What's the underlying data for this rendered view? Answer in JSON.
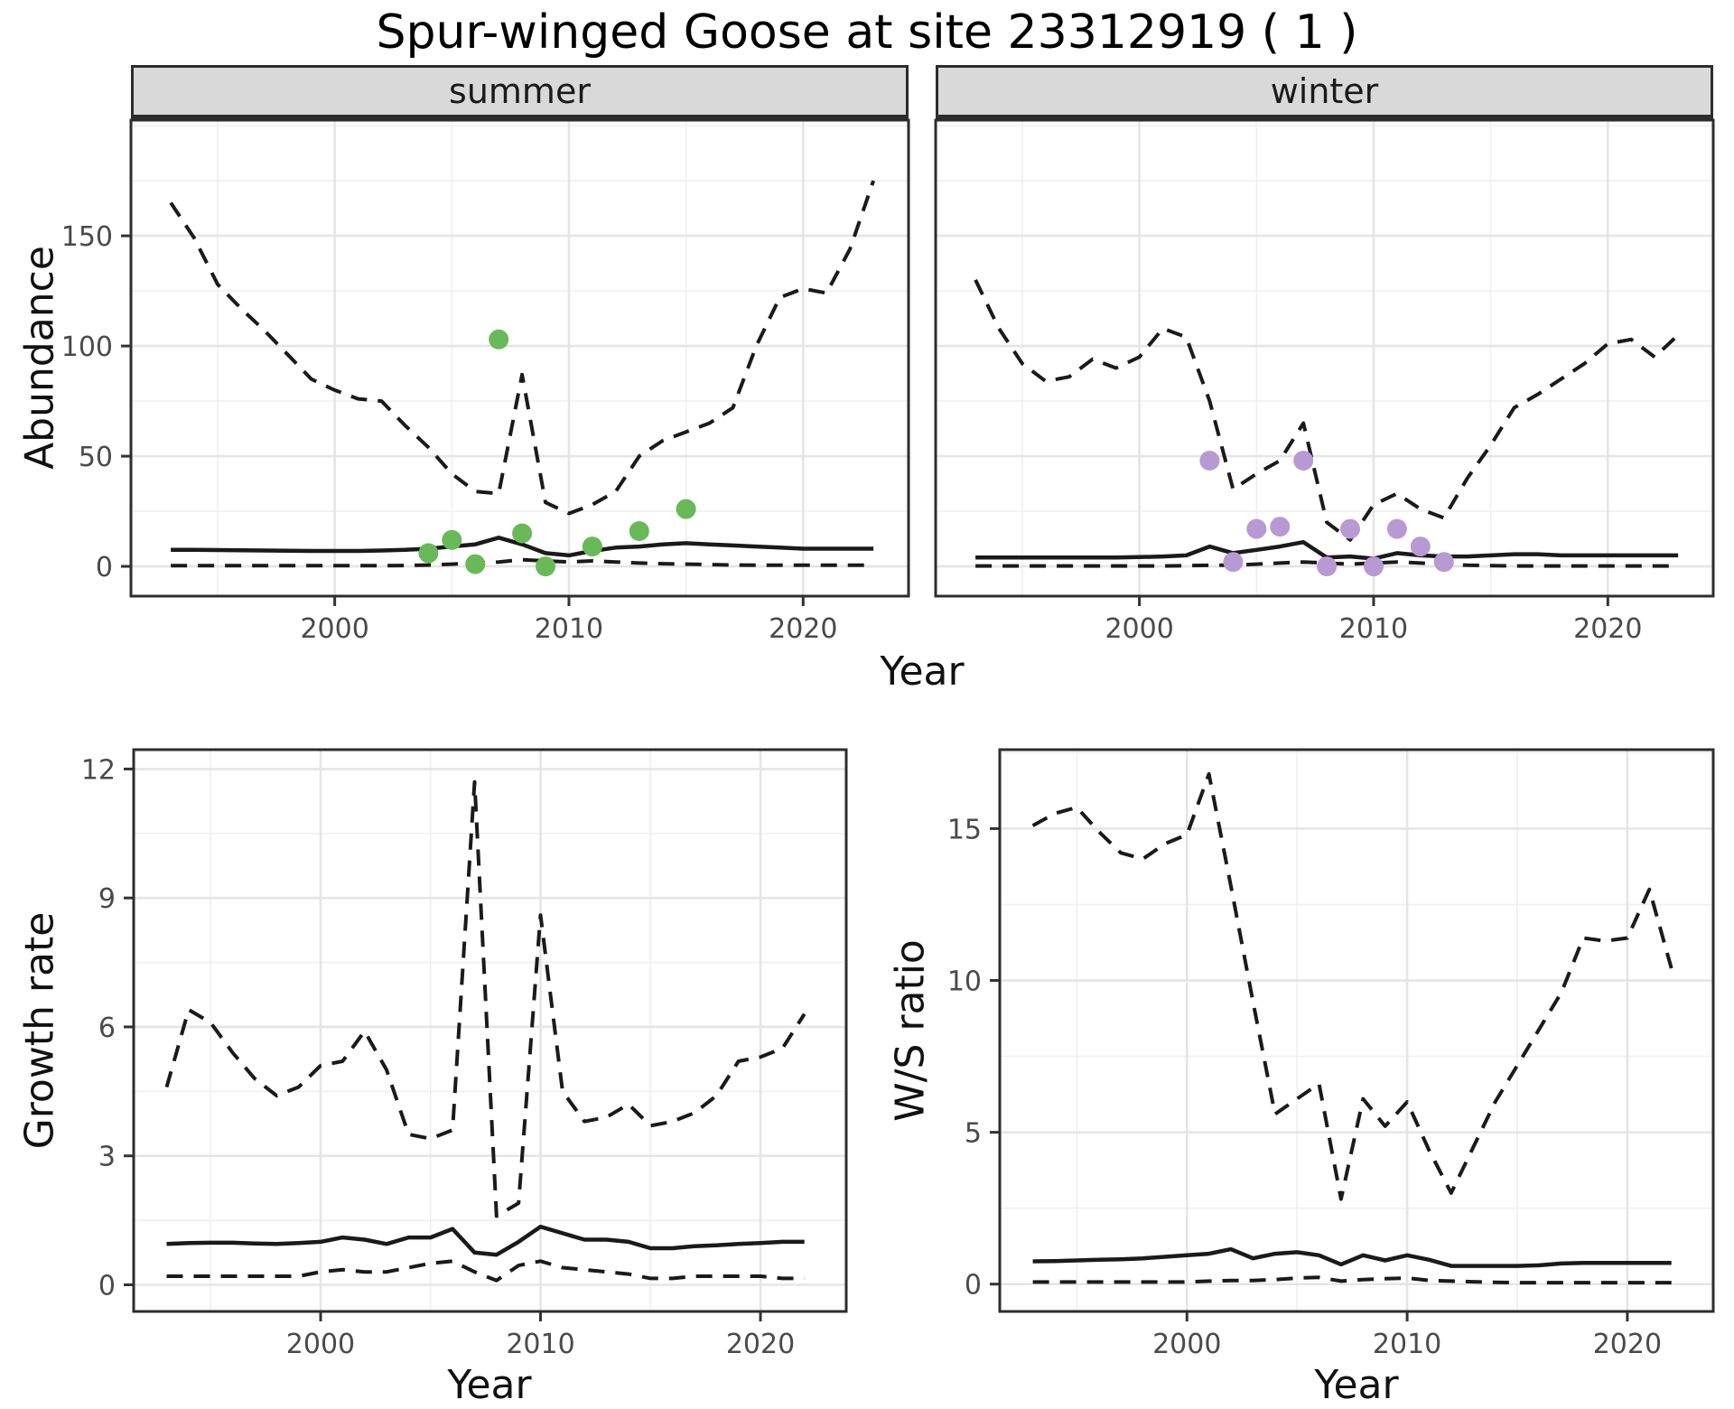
{
  "title": "Spur-winged Goose at site 23312919 ( 1 )",
  "facets": {
    "summer": "summer",
    "winter": "winter"
  },
  "axes": {
    "top_ylabel": "Abundance",
    "top_xlabel": "Year",
    "bottom_left_ylabel": "Growth rate",
    "bottom_left_xlabel": "Year",
    "bottom_right_ylabel": "W/S ratio",
    "bottom_right_xlabel": "Year"
  },
  "colors": {
    "summer_points": "#69b958",
    "winter_points": "#b79ad3",
    "line": "#1a1a1a",
    "grid_major": "#e5e5e5",
    "grid_minor": "#f0f0f0",
    "strip_bg": "#d9d9d9",
    "panel_border": "#2d2d2d",
    "tick_text": "#4a4a4a"
  },
  "chart_data": [
    {
      "type": "line",
      "facet": "summer",
      "ylabel": "Abundance",
      "xlabel": "Year",
      "xlim": [
        1991.3,
        2024.5
      ],
      "ylim": [
        -13.5,
        202.5
      ],
      "xticks": [
        2000,
        2010,
        2020
      ],
      "xminor": [
        1995,
        2005,
        2015
      ],
      "yticks": [
        0,
        50,
        100,
        150
      ],
      "yminor": [
        25,
        75,
        125,
        175,
        200
      ],
      "grid": true,
      "legend": "none",
      "x": [
        1993,
        1994,
        1995,
        1996,
        1997,
        1998,
        1999,
        2000,
        2001,
        2002,
        2003,
        2004,
        2005,
        2006,
        2007,
        2008,
        2009,
        2010,
        2011,
        2012,
        2013,
        2014,
        2015,
        2016,
        2017,
        2018,
        2019,
        2020,
        2021,
        2022,
        2023
      ],
      "series": [
        {
          "name": "upper_ci",
          "style": "dashed",
          "values": [
            165,
            149,
            128,
            117,
            107,
            96,
            85,
            80,
            76,
            75,
            64,
            54,
            42,
            34,
            33,
            87,
            29,
            24,
            28,
            34,
            50,
            57,
            61,
            65,
            72,
            100,
            122,
            126,
            124,
            144,
            175
          ]
        },
        {
          "name": "median",
          "style": "solid",
          "values": [
            7.5,
            7.5,
            7.4,
            7.3,
            7.2,
            7.1,
            7,
            7,
            7,
            7.2,
            7.5,
            8,
            9,
            10,
            13,
            10,
            6,
            5,
            7,
            8.5,
            9,
            10,
            10.5,
            10,
            9.5,
            9,
            8.5,
            8,
            8,
            8,
            8
          ]
        },
        {
          "name": "lower_ci",
          "style": "dashed",
          "values": [
            0.3,
            0.3,
            0.3,
            0.3,
            0.3,
            0.3,
            0.3,
            0.3,
            0.3,
            0.3,
            0.4,
            0.6,
            1,
            1.5,
            2,
            3,
            2.5,
            2,
            2.5,
            2,
            1.5,
            1.2,
            1,
            0.8,
            0.6,
            0.5,
            0.5,
            0.5,
            0.5,
            0.5,
            0.5
          ]
        }
      ],
      "points": {
        "name": "observed_counts",
        "color": "#69b958",
        "x": [
          2004,
          2005,
          2006,
          2007,
          2008,
          2009,
          2011,
          2013,
          2015
        ],
        "y": [
          6,
          12,
          1,
          103,
          15,
          0,
          9,
          16,
          26
        ]
      }
    },
    {
      "type": "line",
      "facet": "winter",
      "ylabel": "Abundance",
      "xlabel": "Year",
      "xlim": [
        1991.3,
        2024.5
      ],
      "ylim": [
        -13.5,
        202.5
      ],
      "xticks": [
        2000,
        2010,
        2020
      ],
      "xminor": [
        1995,
        2005,
        2015
      ],
      "yticks": [
        0,
        50,
        100,
        150
      ],
      "yminor": [
        25,
        75,
        125,
        175,
        200
      ],
      "grid": true,
      "legend": "none",
      "x": [
        1993,
        1994,
        1995,
        1996,
        1997,
        1998,
        1999,
        2000,
        2001,
        2002,
        2003,
        2004,
        2005,
        2006,
        2007,
        2008,
        2009,
        2010,
        2011,
        2012,
        2013,
        2014,
        2015,
        2016,
        2017,
        2018,
        2019,
        2020,
        2021,
        2022,
        2023
      ],
      "series": [
        {
          "name": "upper_ci",
          "style": "dashed",
          "values": [
            130,
            108,
            92,
            84,
            86,
            94,
            90,
            95,
            108,
            104,
            75,
            35,
            42,
            48,
            65,
            20,
            12,
            28,
            33,
            26,
            22,
            40,
            55,
            72,
            78,
            85,
            92,
            101,
            103,
            95,
            105
          ]
        },
        {
          "name": "median",
          "style": "solid",
          "values": [
            4,
            4,
            4,
            4,
            4,
            4,
            4,
            4.2,
            4.5,
            5,
            9,
            6,
            7.5,
            9,
            11,
            4,
            4.5,
            3.5,
            6,
            5,
            4.5,
            4.5,
            5,
            5.5,
            5.5,
            5,
            5,
            5,
            5,
            5,
            5
          ]
        },
        {
          "name": "lower_ci",
          "style": "dashed",
          "values": [
            0.2,
            0.2,
            0.2,
            0.2,
            0.2,
            0.2,
            0.2,
            0.2,
            0.2,
            0.3,
            0.5,
            0.5,
            1,
            1.5,
            2,
            1.5,
            1,
            1.5,
            2,
            1.5,
            1,
            0.5,
            0.3,
            0.2,
            0.2,
            0.2,
            0.2,
            0.2,
            0.2,
            0.2,
            0.2
          ]
        }
      ],
      "points": {
        "name": "observed_counts",
        "color": "#b79ad3",
        "x": [
          2003,
          2004,
          2005,
          2006,
          2007,
          2008,
          2009,
          2010,
          2011,
          2012,
          2013
        ],
        "y": [
          48,
          2,
          17,
          18,
          48,
          0,
          17,
          0,
          17,
          9,
          2
        ]
      }
    },
    {
      "type": "line",
      "facet": null,
      "ylabel": "Growth rate",
      "xlabel": "Year",
      "xlim": [
        1991.5,
        2023.9
      ],
      "ylim": [
        -0.62,
        12.45
      ],
      "xticks": [
        2000,
        2010,
        2020
      ],
      "xminor": [
        1995,
        2005,
        2015
      ],
      "yticks": [
        0,
        3,
        6,
        9,
        12
      ],
      "yminor": [
        1.5,
        4.5,
        7.5,
        10.5
      ],
      "grid": true,
      "legend": "none",
      "x": [
        1993,
        1994,
        1995,
        1996,
        1997,
        1998,
        1999,
        2000,
        2001,
        2002,
        2003,
        2004,
        2005,
        2006,
        2007,
        2008,
        2009,
        2010,
        2011,
        2012,
        2013,
        2014,
        2015,
        2016,
        2017,
        2018,
        2019,
        2020,
        2021,
        2022
      ],
      "series": [
        {
          "name": "upper_ci",
          "style": "dashed",
          "values": [
            4.6,
            6.4,
            6.1,
            5.4,
            4.8,
            4.4,
            4.6,
            5.1,
            5.2,
            5.9,
            5.0,
            3.5,
            3.4,
            3.6,
            11.7,
            1.6,
            1.9,
            8.6,
            4.5,
            3.8,
            3.9,
            4.2,
            3.7,
            3.8,
            4.0,
            4.4,
            5.2,
            5.3,
            5.5,
            6.3
          ]
        },
        {
          "name": "median",
          "style": "solid",
          "values": [
            0.95,
            0.97,
            0.98,
            0.98,
            0.96,
            0.95,
            0.97,
            1.0,
            1.1,
            1.05,
            0.95,
            1.1,
            1.1,
            1.3,
            0.75,
            0.7,
            1.0,
            1.35,
            1.2,
            1.05,
            1.05,
            1.0,
            0.85,
            0.85,
            0.9,
            0.92,
            0.95,
            0.97,
            1.0,
            1.0
          ]
        },
        {
          "name": "lower_ci",
          "style": "dashed",
          "values": [
            0.2,
            0.2,
            0.2,
            0.2,
            0.2,
            0.2,
            0.2,
            0.3,
            0.35,
            0.3,
            0.3,
            0.4,
            0.5,
            0.55,
            0.3,
            0.1,
            0.45,
            0.55,
            0.4,
            0.35,
            0.3,
            0.25,
            0.15,
            0.15,
            0.2,
            0.2,
            0.2,
            0.2,
            0.15,
            0.15
          ]
        }
      ],
      "points": null
    },
    {
      "type": "line",
      "facet": null,
      "ylabel": "W/S ratio",
      "xlabel": "Year",
      "xlim": [
        1991.5,
        2023.9
      ],
      "ylim": [
        -0.9,
        17.6
      ],
      "xticks": [
        2000,
        2010,
        2020
      ],
      "xminor": [
        1995,
        2005,
        2015
      ],
      "yticks": [
        0,
        5,
        10,
        15
      ],
      "yminor": [
        2.5,
        7.5,
        12.5,
        17.5
      ],
      "grid": true,
      "legend": "none",
      "x": [
        1993,
        1994,
        1995,
        1996,
        1997,
        1998,
        1999,
        2000,
        2001,
        2002,
        2003,
        2004,
        2005,
        2006,
        2007,
        2008,
        2009,
        2010,
        2011,
        2012,
        2013,
        2014,
        2015,
        2016,
        2017,
        2018,
        2019,
        2020,
        2021,
        2022
      ],
      "series": [
        {
          "name": "upper_ci",
          "style": "dashed",
          "values": [
            15.1,
            15.5,
            15.7,
            14.9,
            14.2,
            14.0,
            14.5,
            14.8,
            16.8,
            13.1,
            9.3,
            5.6,
            6.1,
            6.6,
            2.8,
            6.1,
            5.2,
            6.0,
            4.4,
            3.0,
            4.5,
            6.0,
            7.2,
            8.4,
            9.6,
            11.4,
            11.3,
            11.4,
            13.0,
            10.4
          ]
        },
        {
          "name": "median",
          "style": "solid",
          "values": [
            0.75,
            0.76,
            0.78,
            0.8,
            0.82,
            0.85,
            0.9,
            0.95,
            1.0,
            1.15,
            0.85,
            1.0,
            1.05,
            0.95,
            0.65,
            0.95,
            0.78,
            0.95,
            0.8,
            0.6,
            0.6,
            0.6,
            0.6,
            0.62,
            0.68,
            0.7,
            0.7,
            0.7,
            0.7,
            0.7
          ]
        },
        {
          "name": "lower_ci",
          "style": "dashed",
          "values": [
            0.07,
            0.07,
            0.07,
            0.07,
            0.07,
            0.07,
            0.07,
            0.07,
            0.1,
            0.12,
            0.12,
            0.15,
            0.2,
            0.22,
            0.1,
            0.15,
            0.18,
            0.2,
            0.12,
            0.1,
            0.08,
            0.06,
            0.05,
            0.05,
            0.05,
            0.05,
            0.05,
            0.05,
            0.05,
            0.05
          ]
        }
      ],
      "points": null
    }
  ]
}
